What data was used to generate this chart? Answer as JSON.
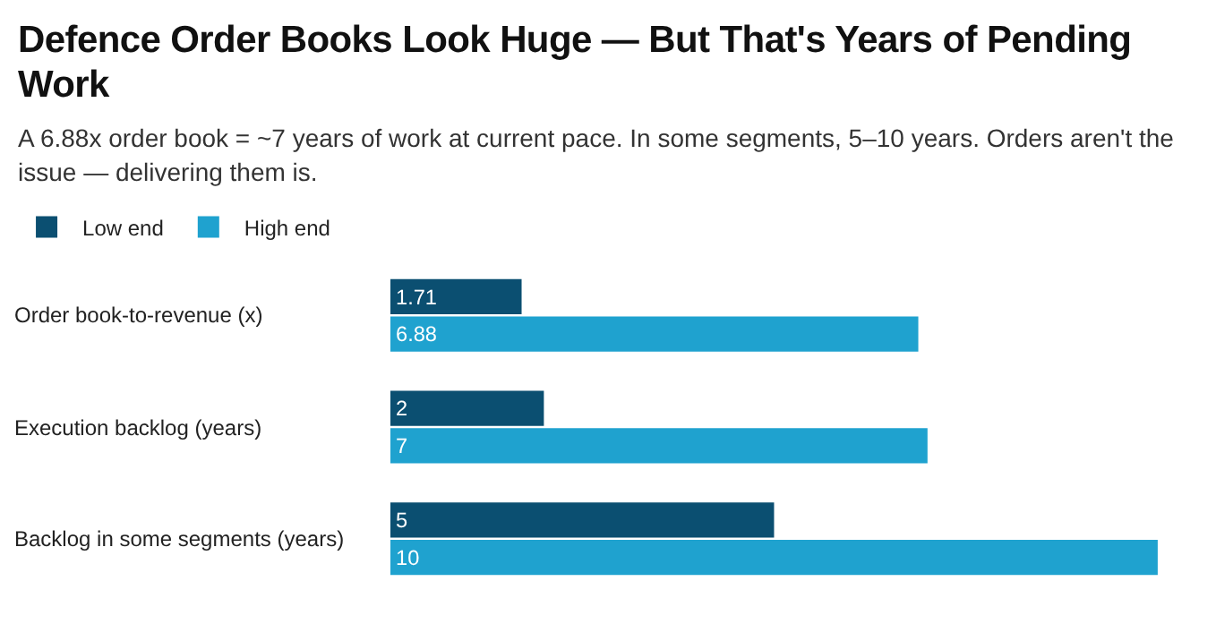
{
  "chart_data": {
    "type": "bar",
    "orientation": "horizontal",
    "title": "Defence Order Books Look Huge — But That's Years of Pending Work",
    "subtitle": "A 6.88x order book = ~7 years of work at current pace. In some segments, 5–10 years. Orders aren't the issue — delivering them is.",
    "categories": [
      "Order book-to-revenue (x)",
      "Execution backlog (years)",
      "Backlog in some segments (years)"
    ],
    "series": [
      {
        "name": "Low end",
        "color": "#0b4f71",
        "values": [
          1.71,
          2,
          5
        ]
      },
      {
        "name": "High end",
        "color": "#1fa2cf",
        "values": [
          6.88,
          7,
          10
        ]
      }
    ],
    "data_labels": true,
    "legend": "top left",
    "grid": false
  }
}
